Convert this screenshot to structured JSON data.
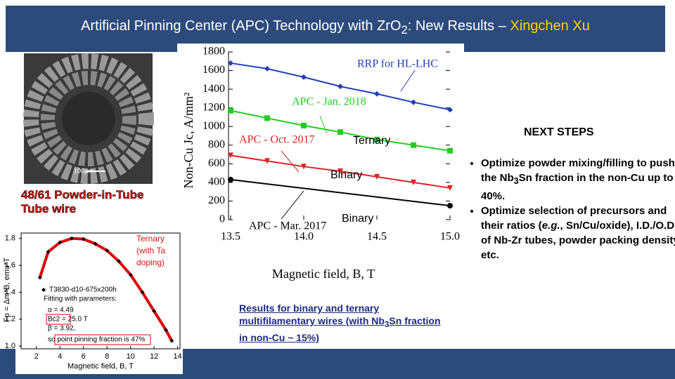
{
  "title": {
    "parts": [
      "Artificial Pinning Center (APC) Technology with ZrO",
      "2",
      ": New Results – ",
      "Xingchen Xu"
    ]
  },
  "micrograph": {
    "scale_label": "100µm",
    "caption": "48/61 Powder-in-Tube Tube wire"
  },
  "caption": {
    "parts": [
      "Results for binary and ternary multifilamentary wires (with Nb",
      "3",
      "Sn fraction in non-Cu ~ 15%)"
    ]
  },
  "next_steps": {
    "heading": "NEXT STEPS",
    "bullets": [
      {
        "parts": [
          "Optimize powder mixing/filling to push the Nb",
          "3",
          "Sn fraction in the non-Cu up to 40%."
        ]
      },
      {
        "parts": [
          "Optimize selection of precursors and their ratios (",
          "e.g.",
          ", Sn/Cu/oxide), I.D./O.D. of Nb-Zr tubes, powder packing density, etc."
        ]
      }
    ]
  },
  "chart_data": [
    {
      "type": "line",
      "x_label": "Magnetic field, B, T",
      "y_label": "Non-Cu Jc, A/mm²",
      "xlim": [
        13.5,
        15.0
      ],
      "xticks": [
        13.5,
        {
          "value": 14,
          "label": "14.0"
        },
        14.5,
        {
          "value": 15,
          "label": "15.0"
        }
      ],
      "ylim": [
        0,
        1800
      ],
      "yticks": [
        0,
        200,
        400,
        600,
        800,
        1000,
        1200,
        1400,
        1600,
        1800
      ],
      "series": [
        {
          "name": "RRP for HL-LHC",
          "color": "#1f3fbf",
          "marker": "diamond",
          "x": [
            13.5,
            13.75,
            14.0,
            14.25,
            14.5,
            14.75,
            15.0
          ],
          "values": [
            1680,
            1620,
            1530,
            1430,
            1350,
            1260,
            1180
          ]
        },
        {
          "name": "APC - Jan. 2018",
          "color": "#22cc22",
          "marker": "square",
          "x": [
            13.5,
            13.75,
            14.0,
            14.25,
            14.5,
            14.75,
            15.0
          ],
          "values": [
            1170,
            1090,
            1010,
            940,
            860,
            800,
            740
          ]
        },
        {
          "name": "APC - Oct. 2017",
          "color": "#dd2222",
          "marker": "triangle",
          "x": [
            13.5,
            13.75,
            14.0,
            14.25,
            14.5,
            14.75,
            15.0
          ],
          "values": [
            690,
            630,
            570,
            520,
            460,
            400,
            340
          ]
        },
        {
          "name": "APC - Mar. 2017",
          "color": "#000000",
          "marker": "circle",
          "x": [
            13.5,
            15.0
          ],
          "values": [
            430,
            150
          ]
        }
      ],
      "annotations": [
        "Ternary",
        "Binary",
        "Binary"
      ]
    },
    {
      "type": "scatter",
      "x_label": "Magnetic field, B, T",
      "y_label": "Fp = Δm*B, emu*T",
      "xlim": [
        0.7,
        14.2
      ],
      "xticks": [
        2,
        4,
        6,
        8,
        10,
        12,
        14
      ],
      "ylim": [
        0.98,
        1.84
      ],
      "yticks": [
        {
          "value": 1,
          "label": "1.0"
        },
        1.2,
        1.4,
        1.6,
        {
          "value": 1.8,
          "label": "1.8"
        }
      ],
      "series": [
        {
          "name": "T3830-d10-675x200h",
          "color": "#000000",
          "fit_color": "#e00000",
          "x": [
            2.3,
            3,
            4,
            5,
            6,
            7,
            8,
            9,
            10,
            11,
            12,
            13,
            13.5
          ],
          "values": [
            1.51,
            1.7,
            1.77,
            1.8,
            1.795,
            1.76,
            1.71,
            1.63,
            1.53,
            1.4,
            1.26,
            1.12,
            1.04
          ]
        }
      ],
      "annotations": [
        "Fitting with parameters:",
        "α = 4.49",
        "Bc2 = 25.0 T",
        "β = 3.92,",
        "so point pinning fraction is 47%"
      ],
      "note": "Ternary (with Ta doping)"
    }
  ]
}
